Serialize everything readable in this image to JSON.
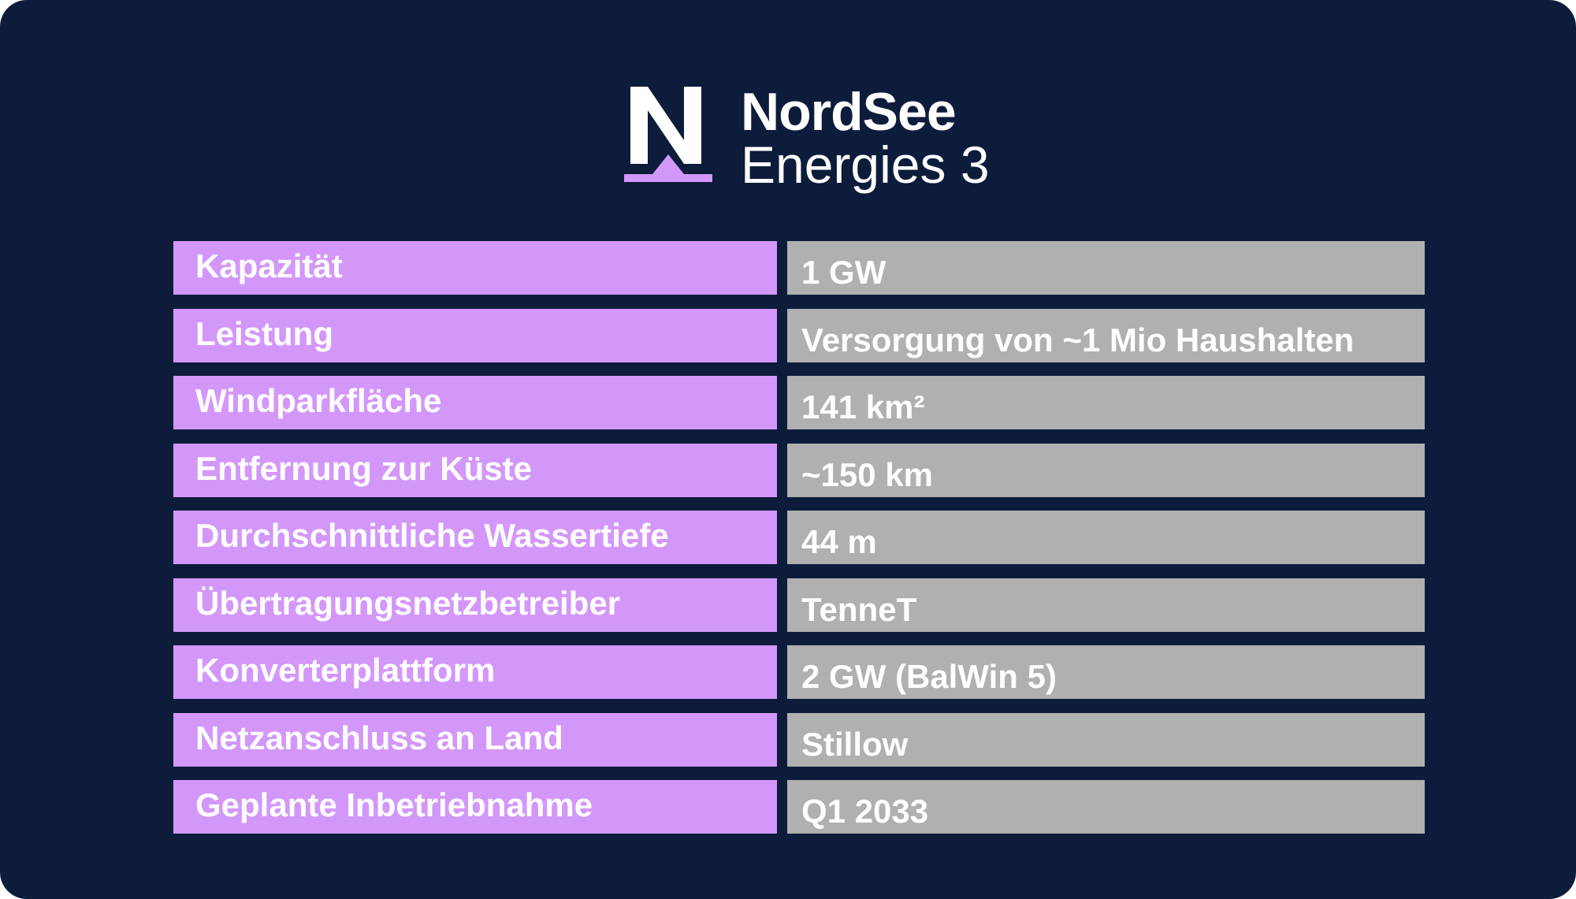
{
  "brand": {
    "name_line1": "NordSee",
    "name_line2": "Energies 3",
    "colors": {
      "background": "#0c1c3a",
      "accent": "#d397fa",
      "value_cell": "#b0b0b0",
      "text": "#ffffff"
    },
    "logo_icon": "letter-n-icon"
  },
  "table": {
    "rows": [
      {
        "label": "Kapazität",
        "value": "1 GW"
      },
      {
        "label": "Leistung",
        "value": "Versorgung von ~1 Mio Haushalten"
      },
      {
        "label": "Windparkfläche",
        "value": "141 km²"
      },
      {
        "label": "Entfernung zur Küste",
        "value": "~150 km"
      },
      {
        "label": "Durchschnittliche Wassertiefe",
        "value": "44 m"
      },
      {
        "label": "Übertragungsnetzbetreiber",
        "value": "TenneT"
      },
      {
        "label": "Konverterplattform",
        "value": "2 GW (BalWin 5)"
      },
      {
        "label": "Netzanschluss an Land",
        "value": "Stillow"
      },
      {
        "label": "Geplante Inbetriebnahme",
        "value": "Q1 2033"
      }
    ]
  }
}
